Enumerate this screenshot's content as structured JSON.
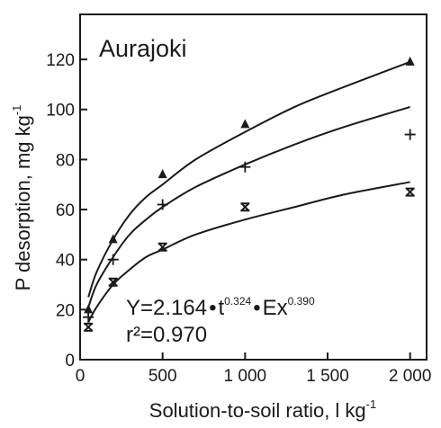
{
  "chart_data": {
    "type": "scatter",
    "title": "Aurajoki",
    "xlabel": "Solution-to-soil ratio, l kg",
    "xlabel_sup": "-1",
    "ylabel": "P desorption, mg kg",
    "ylabel_sup": "-1",
    "xlim": [
      0,
      2100
    ],
    "ylim": [
      0,
      138
    ],
    "xticks": [
      0,
      500,
      1000,
      1500,
      2000
    ],
    "xtick_labels": [
      "0",
      "500",
      "1 000",
      "1 500",
      "2 000"
    ],
    "yticks": [
      0,
      20,
      40,
      60,
      80,
      100,
      120
    ],
    "ytick_labels": [
      "0",
      "20",
      "40",
      "60",
      "80",
      "100",
      "120"
    ],
    "grid": false,
    "legend": "none",
    "series": [
      {
        "marker": "triangle",
        "x": [
          50,
          200,
          500,
          1000,
          2000
        ],
        "y": [
          20,
          48,
          74,
          94,
          119
        ],
        "curve_x": [
          50,
          100,
          200,
          300,
          400,
          500,
          700,
          1000,
          1300,
          1600,
          2000
        ],
        "curve_y": [
          25,
          35,
          48,
          58,
          65,
          70,
          80,
          91,
          101,
          109,
          119
        ]
      },
      {
        "marker": "plus",
        "x": [
          50,
          200,
          500,
          1000,
          2000
        ],
        "y": [
          17,
          40,
          62,
          77,
          90
        ],
        "curve_x": [
          50,
          100,
          200,
          300,
          400,
          500,
          700,
          1000,
          1300,
          1600,
          2000
        ],
        "curve_y": [
          21,
          30,
          41,
          50,
          56,
          61,
          69,
          78,
          86,
          93,
          101
        ]
      },
      {
        "marker": "asterisk",
        "x": [
          50,
          200,
          500,
          1000,
          2000
        ],
        "y": [
          13,
          31,
          45,
          61,
          67
        ],
        "curve_x": [
          50,
          100,
          200,
          300,
          400,
          500,
          700,
          1000,
          1300,
          1600,
          2000
        ],
        "curve_y": [
          15,
          21,
          30,
          36,
          41,
          44,
          50,
          56,
          61,
          66,
          71
        ]
      }
    ],
    "annotations": {
      "equation_main": "Y=2.164",
      "equation_t": "t",
      "equation_t_exp": "0.324",
      "equation_ex": "Ex",
      "equation_ex_exp": "0.390",
      "r2_label": "r²=0.970"
    }
  }
}
